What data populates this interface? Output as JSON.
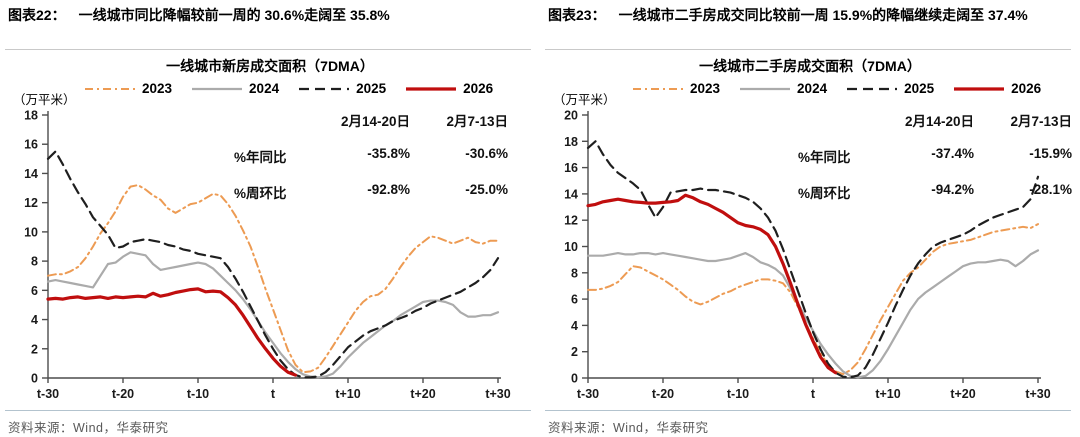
{
  "source_note": "资料来源：Wind，华泰研究",
  "figures": [
    {
      "caption_id": "图表22：",
      "caption_text": "一线城市同比降幅较前一周的 30.6%走阔至 35.8%"
    },
    {
      "caption_id": "图表23：",
      "caption_text": "一线城市二手房成交同比较前一周 15.9%的降幅继续走阔至 37.4%"
    }
  ],
  "chart_data": [
    {
      "type": "line",
      "title": "一线城市新房成交面积（7DMA）",
      "unit_label": "（万平米）",
      "ylim": [
        0,
        18
      ],
      "ytick_step": 2,
      "x_tick_labels": [
        "t-30",
        "t-20",
        "t-10",
        "t",
        "t+10",
        "t+20",
        "t+30"
      ],
      "grid": "off",
      "legend_position": "top",
      "annotation_table": {
        "col_headers": [
          "2月14-20日",
          "2月7-13日"
        ],
        "rows": [
          {
            "label": "%年同比",
            "values": [
              "-35.8%",
              "-30.6%"
            ]
          },
          {
            "label": "%周环比",
            "values": [
              "-92.8%",
              "-25.0%"
            ]
          }
        ]
      },
      "series": [
        {
          "name": "2023",
          "color": "#ed9b53",
          "dash": "8 4 2 4",
          "width": 2,
          "values": [
            7.0,
            7.1,
            7.1,
            7.3,
            7.6,
            8.2,
            9.0,
            9.9,
            10.6,
            11.4,
            12.4,
            13.1,
            13.2,
            12.9,
            12.5,
            12.2,
            11.6,
            11.3,
            11.6,
            11.9,
            12.0,
            12.3,
            12.6,
            12.5,
            11.9,
            11.1,
            10.1,
            9.0,
            7.6,
            6.1,
            4.7,
            3.3,
            1.9,
            0.9,
            0.4,
            0.45,
            0.7,
            1.4,
            2.2,
            3.0,
            3.8,
            4.6,
            5.2,
            5.6,
            5.7,
            6.1,
            6.8,
            7.6,
            8.3,
            8.9,
            9.3,
            9.7,
            9.6,
            9.4,
            9.2,
            9.4,
            9.6,
            9.3,
            9.2,
            9.4,
            9.4
          ]
        },
        {
          "name": "2024",
          "color": "#ababab",
          "dash": null,
          "width": 2.2,
          "values": [
            6.6,
            6.7,
            6.6,
            6.5,
            6.4,
            6.3,
            6.2,
            7.0,
            7.8,
            7.9,
            8.3,
            8.6,
            8.5,
            8.4,
            7.8,
            7.4,
            7.5,
            7.6,
            7.7,
            7.8,
            7.9,
            7.8,
            7.5,
            7.0,
            6.5,
            6.0,
            5.4,
            4.7,
            3.9,
            3.1,
            2.4,
            1.7,
            1.1,
            0.6,
            0.25,
            0.1,
            0.05,
            0.1,
            0.3,
            0.8,
            1.4,
            1.9,
            2.4,
            2.8,
            3.2,
            3.6,
            3.9,
            4.3,
            4.6,
            4.9,
            5.2,
            5.3,
            5.3,
            5.2,
            5.0,
            4.5,
            4.2,
            4.2,
            4.3,
            4.3,
            4.5
          ]
        },
        {
          "name": "2025",
          "color": "#1f1f1f",
          "dash": "10 6",
          "width": 2.2,
          "values": [
            15.0,
            15.5,
            14.6,
            13.6,
            12.7,
            11.9,
            11.0,
            10.4,
            9.8,
            8.9,
            9.0,
            9.3,
            9.4,
            9.5,
            9.4,
            9.3,
            9.1,
            9.0,
            8.8,
            8.7,
            8.5,
            8.4,
            8.3,
            8.2,
            7.6,
            6.8,
            5.9,
            4.9,
            3.9,
            2.9,
            2.0,
            1.2,
            0.6,
            0.2,
            0.05,
            0.05,
            0.1,
            0.4,
            0.9,
            1.5,
            2.1,
            2.5,
            2.9,
            3.2,
            3.4,
            3.6,
            3.9,
            4.1,
            4.3,
            4.6,
            4.8,
            5.1,
            5.3,
            5.5,
            5.7,
            5.9,
            6.2,
            6.5,
            6.9,
            7.4,
            8.2
          ]
        },
        {
          "name": "2026",
          "color": "#c00e0e",
          "dash": null,
          "width": 3.2,
          "values": [
            5.4,
            5.45,
            5.4,
            5.5,
            5.55,
            5.45,
            5.5,
            5.55,
            5.45,
            5.55,
            5.5,
            5.55,
            5.6,
            5.55,
            5.8,
            5.6,
            5.7,
            5.85,
            5.95,
            6.05,
            6.1,
            5.9,
            5.95,
            5.9,
            5.5,
            5.0,
            4.3,
            3.5,
            2.7,
            2.0,
            1.35,
            0.8,
            0.4,
            0.2,
            null,
            null,
            null,
            null,
            null,
            null,
            null,
            null,
            null,
            null,
            null,
            null,
            null,
            null,
            null,
            null,
            null,
            null,
            null,
            null,
            null,
            null,
            null,
            null,
            null,
            null,
            null
          ]
        }
      ]
    },
    {
      "type": "line",
      "title": "一线城市二手房成交面积（7DMA）",
      "unit_label": "（万平米）",
      "ylim": [
        0,
        20
      ],
      "ytick_step": 2,
      "x_tick_labels": [
        "t-30",
        "t-20",
        "t-10",
        "t",
        "t+10",
        "t+20",
        "t+30"
      ],
      "grid": "off",
      "legend_position": "top",
      "annotation_table": {
        "col_headers": [
          "2月14-20日",
          "2月7-13日"
        ],
        "rows": [
          {
            "label": "%年同比",
            "values": [
              "-37.4%",
              "-15.9%"
            ]
          },
          {
            "label": "%周环比",
            "values": [
              "-94.2%",
              "-28.1%"
            ]
          }
        ]
      },
      "series": [
        {
          "name": "2023",
          "color": "#ed9b53",
          "dash": "8 4 2 4",
          "width": 2,
          "values": [
            6.7,
            6.7,
            6.8,
            7.0,
            7.3,
            7.9,
            8.5,
            8.4,
            8.1,
            7.8,
            7.5,
            7.1,
            6.7,
            6.2,
            5.8,
            5.6,
            5.8,
            6.1,
            6.4,
            6.6,
            6.9,
            7.1,
            7.3,
            7.5,
            7.5,
            7.4,
            7.2,
            6.5,
            5.4,
            4.2,
            3.0,
            1.9,
            1.0,
            0.5,
            0.3,
            0.6,
            1.2,
            2.2,
            3.3,
            4.4,
            5.4,
            6.4,
            7.4,
            8.0,
            8.4,
            9.0,
            9.6,
            10.0,
            10.2,
            10.3,
            10.4,
            10.5,
            10.7,
            10.9,
            11.1,
            11.2,
            11.3,
            11.4,
            11.5,
            11.4,
            11.7
          ]
        },
        {
          "name": "2024",
          "color": "#ababab",
          "dash": null,
          "width": 2.2,
          "values": [
            9.3,
            9.3,
            9.3,
            9.4,
            9.5,
            9.4,
            9.4,
            9.5,
            9.5,
            9.4,
            9.5,
            9.4,
            9.3,
            9.2,
            9.1,
            9.0,
            8.9,
            8.9,
            9.0,
            9.1,
            9.3,
            9.5,
            9.2,
            8.8,
            8.6,
            8.3,
            7.8,
            6.8,
            5.7,
            4.6,
            3.6,
            2.6,
            1.8,
            1.1,
            0.5,
            0.15,
            0.05,
            0.15,
            0.6,
            1.3,
            2.2,
            3.2,
            4.2,
            5.2,
            6.0,
            6.5,
            6.9,
            7.3,
            7.7,
            8.1,
            8.5,
            8.7,
            8.8,
            8.8,
            8.9,
            9.0,
            8.9,
            8.5,
            8.9,
            9.4,
            9.7
          ]
        },
        {
          "name": "2025",
          "color": "#1f1f1f",
          "dash": "10 6",
          "width": 2.2,
          "values": [
            17.5,
            18.0,
            17.0,
            16.2,
            15.6,
            15.2,
            14.8,
            14.3,
            13.2,
            12.2,
            13.0,
            14.1,
            14.2,
            14.3,
            14.3,
            14.4,
            14.3,
            14.3,
            14.2,
            14.1,
            13.9,
            13.7,
            13.4,
            12.9,
            12.2,
            11.2,
            9.8,
            8.2,
            6.6,
            5.0,
            3.5,
            2.2,
            1.1,
            0.4,
            0.1,
            0.05,
            0.2,
            0.8,
            1.8,
            3.0,
            4.2,
            5.5,
            6.7,
            7.8,
            8.7,
            9.4,
            10.0,
            10.3,
            10.5,
            10.7,
            10.9,
            11.2,
            11.6,
            11.9,
            12.2,
            12.4,
            12.6,
            12.8,
            13.0,
            13.6,
            15.3
          ]
        },
        {
          "name": "2026",
          "color": "#c00e0e",
          "dash": null,
          "width": 3.2,
          "values": [
            13.1,
            13.2,
            13.4,
            13.5,
            13.6,
            13.5,
            13.4,
            13.35,
            13.3,
            13.3,
            13.35,
            13.4,
            13.5,
            13.9,
            13.7,
            13.4,
            13.2,
            12.9,
            12.6,
            12.2,
            11.8,
            11.6,
            11.5,
            11.3,
            10.9,
            10.0,
            8.7,
            7.2,
            5.6,
            4.1,
            2.8,
            1.6,
            0.8,
            0.4,
            null,
            null,
            null,
            null,
            null,
            null,
            null,
            null,
            null,
            null,
            null,
            null,
            null,
            null,
            null,
            null,
            null,
            null,
            null,
            null,
            null,
            null,
            null,
            null,
            null,
            null,
            null
          ]
        }
      ]
    }
  ]
}
